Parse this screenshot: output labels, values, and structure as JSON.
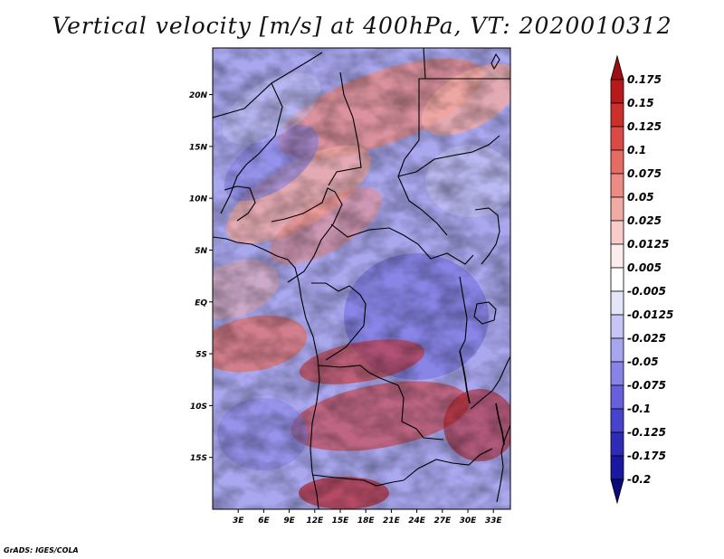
{
  "title": "Vertical velocity [m/s] at 400hPa, VT: 2020010312",
  "credit": "GrADS: IGES/COLA",
  "map": {
    "lat_ticks": [
      "20N",
      "15N",
      "10N",
      "5N",
      "EQ",
      "5S",
      "10S",
      "15S"
    ],
    "lon_ticks": [
      "3E",
      "6E",
      "9E",
      "12E",
      "15E",
      "18E",
      "21E",
      "24E",
      "27E",
      "30E",
      "33E"
    ],
    "lon_range": [
      0,
      35
    ],
    "lat_range": [
      -20,
      24.5
    ]
  },
  "colorbar": {
    "labels": [
      "0.175",
      "0.15",
      "0.125",
      "0.1",
      "0.075",
      "0.05",
      "0.025",
      "0.0125",
      "0.005",
      "-0.005",
      "-0.0125",
      "-0.025",
      "-0.05",
      "-0.075",
      "-0.1",
      "-0.125",
      "-0.175",
      "-0.2"
    ],
    "colors": [
      "#9c0e12",
      "#b81a1c",
      "#cd2f2b",
      "#db4b45",
      "#e56c63",
      "#ec8b83",
      "#f2aba4",
      "#f8cdc9",
      "#fceceb",
      "#ffffff",
      "#e4e4fa",
      "#c6c5f5",
      "#a7a5ef",
      "#8784e7",
      "#6561dc",
      "#4743cd",
      "#2e2bb8",
      "#1a17a0",
      "#0b0a7a"
    ]
  }
}
